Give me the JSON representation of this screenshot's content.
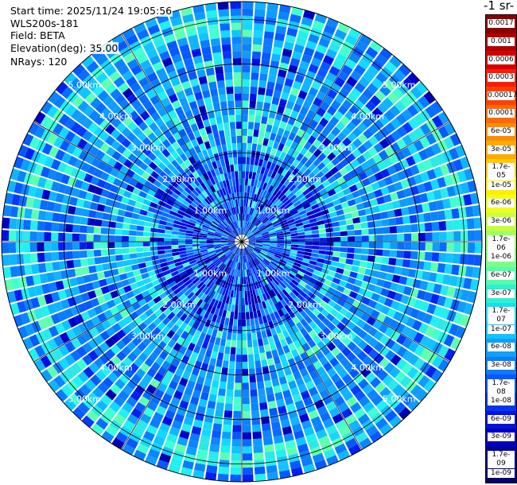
{
  "info": {
    "start_time": "Start time: 2025/11/24 19:05:56",
    "instrument": "WLS200s-181",
    "field": "Field: BETA",
    "elevation": "Elevation(deg): 35.00",
    "nrays": "NRays: 120"
  },
  "colorbar": {
    "title": "-1 sr-",
    "labels": [
      "0.0017",
      "0.001",
      "0.0006",
      "0.0003",
      "0.00017",
      "0.0001",
      "6e-05",
      "3e-05",
      "1.7e-05",
      "1e-05",
      "6e-06",
      "3e-06",
      "1.7e-06",
      "1e-06",
      "6e-07",
      "3e-07",
      "1.7e-07",
      "1e-07",
      "6e-08",
      "3e-08",
      "1.7e-08",
      "1e-08",
      "6e-09",
      "3e-09",
      "1.7e-09",
      "1e-09"
    ],
    "colors": [
      "#8b0000",
      "#b00000",
      "#d40000",
      "#ff1a00",
      "#ff4000",
      "#ff6a00",
      "#ff8c00",
      "#ffaa00",
      "#ffcc00",
      "#ffee00",
      "#eeff1a",
      "#c8ff3c",
      "#a0ff60",
      "#7cff84",
      "#50ffaa",
      "#2cf0d0",
      "#14e0f0",
      "#10c4ff",
      "#0ca0ff",
      "#0a7cff",
      "#0858ff",
      "#0634f0",
      "#0414d8",
      "#0000c0",
      "#000096",
      "#00006e"
    ]
  },
  "chart_data": {
    "type": "heatmap",
    "projection": "polar PPI",
    "field": "BETA",
    "elevation_deg": 35.0,
    "n_rays": 120,
    "range_rings_km": [
      1.0,
      2.0,
      3.0,
      4.0,
      5.0
    ],
    "range_ring_labels": [
      "1.00km",
      "2.00km",
      "3.00km",
      "4.00km",
      "5.00km"
    ],
    "max_range_km": 5.4,
    "color_scale": "log",
    "value_range": [
      1e-09,
      0.0017
    ],
    "dominant_values": {
      "inner_0_to_2km": 1e-08,
      "ring_2_to_3km": 1e-07,
      "outer_3_to_5_4km": 6e-08
    }
  }
}
